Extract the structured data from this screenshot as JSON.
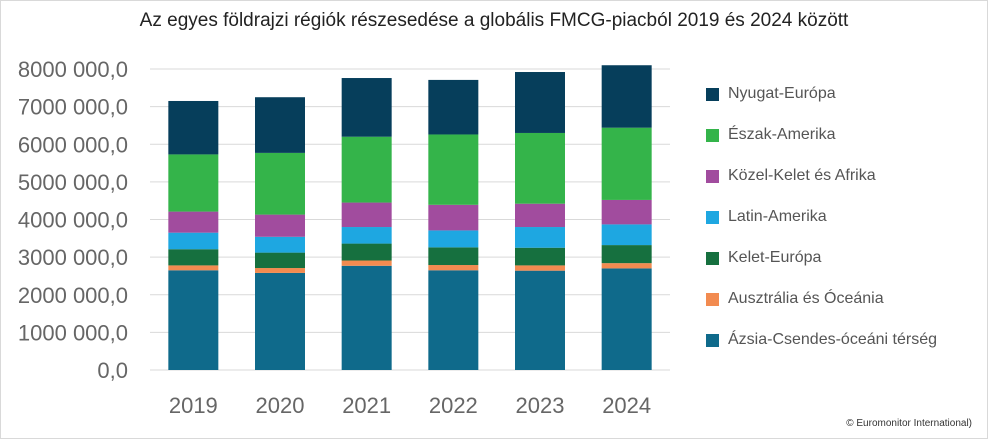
{
  "chart_data": {
    "type": "bar",
    "stacked": true,
    "title": "Az egyes földrajzi régiók részesedése a globális FMCG-piacból 2019 és 2024 között",
    "categories": [
      "2019",
      "2020",
      "2021",
      "2022",
      "2023",
      "2024"
    ],
    "ylim": [
      0,
      8000000
    ],
    "yticks": [
      "0,0",
      "1000 000,0",
      "2000 000,0",
      "3000 000,0",
      "4000 000,0",
      "5000 000,0",
      "6000 000,0",
      "7000 000,0",
      "8000 000,0"
    ],
    "ytick_values": [
      0,
      1000000,
      2000000,
      3000000,
      4000000,
      5000000,
      6000000,
      7000000,
      8000000
    ],
    "grid": true,
    "legend_position": "right",
    "series": [
      {
        "name": "Ázsia-Csendes-óceáni térség",
        "color": "#0f6a8b",
        "values": [
          2650000,
          2580000,
          2770000,
          2650000,
          2640000,
          2700000
        ]
      },
      {
        "name": "Ausztrália és Óceánia",
        "color": "#f28b50",
        "values": [
          130000,
          130000,
          140000,
          140000,
          140000,
          140000
        ]
      },
      {
        "name": "Kelet-Európa",
        "color": "#16703f",
        "values": [
          430000,
          410000,
          450000,
          470000,
          470000,
          480000
        ]
      },
      {
        "name": "Latin-Amerika",
        "color": "#1ea7e1",
        "values": [
          440000,
          420000,
          440000,
          450000,
          550000,
          550000
        ]
      },
      {
        "name": "Közel-Kelet és Afrika",
        "color": "#a14c9e",
        "values": [
          560000,
          590000,
          650000,
          680000,
          620000,
          650000
        ]
      },
      {
        "name": "Észak-Amerika",
        "color": "#34b44a",
        "values": [
          1520000,
          1640000,
          1750000,
          1870000,
          1880000,
          1920000
        ]
      },
      {
        "name": "Nyugat-Európa",
        "color": "#063e5b",
        "values": [
          1420000,
          1480000,
          1560000,
          1450000,
          1620000,
          1660000
        ]
      }
    ],
    "legend_order": [
      "Nyugat-Európa",
      "Észak-Amerika",
      "Közel-Kelet és Afrika",
      "Latin-Amerika",
      "Kelet-Európa",
      "Ausztrália és Óceánia",
      "Ázsia-Csendes-óceáni térség"
    ],
    "source": "© Euromonitor International)"
  }
}
